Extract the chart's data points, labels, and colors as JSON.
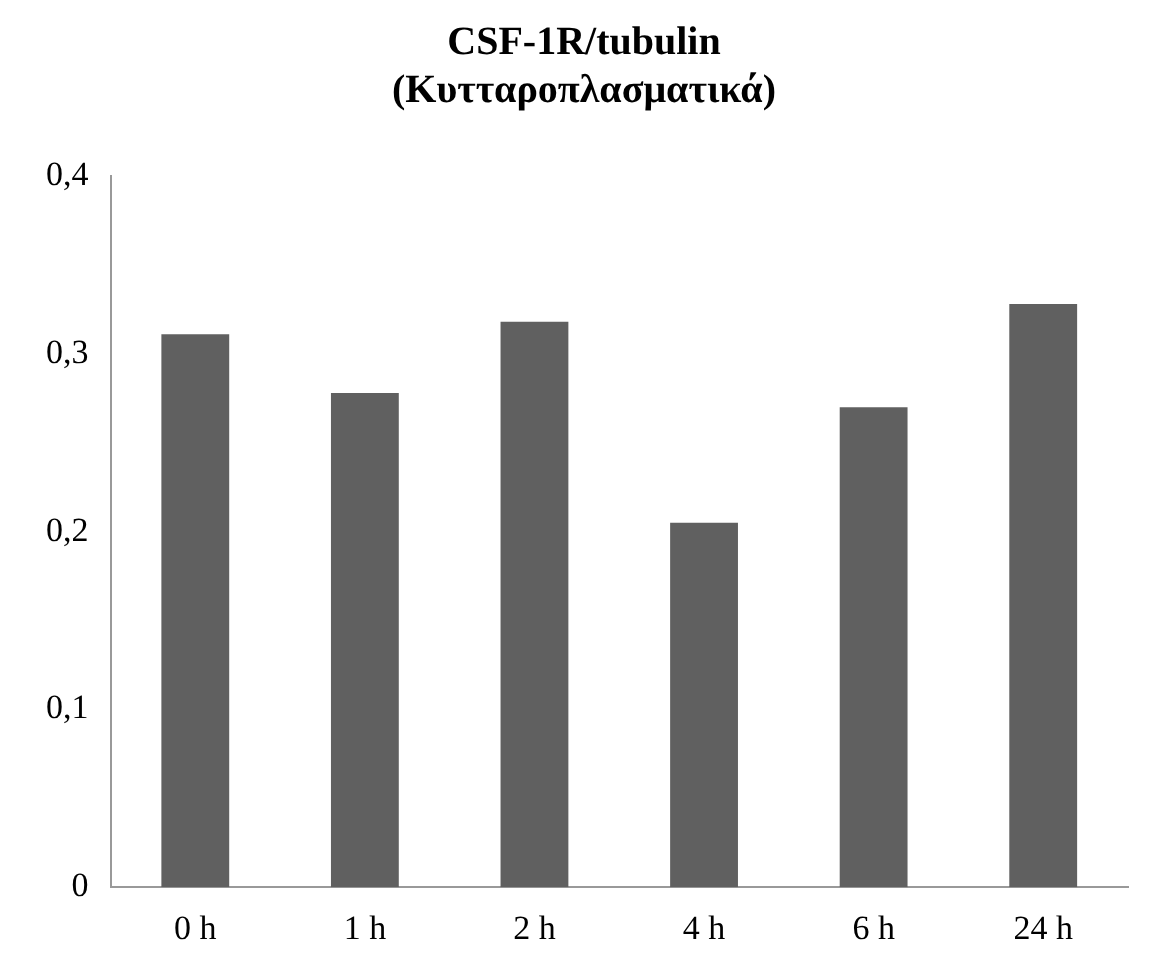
{
  "chart_data": {
    "type": "bar",
    "title": [
      "CSF-1R/tubulin",
      "(Κυτταροπλασματικά)"
    ],
    "categories": [
      "0 h",
      "1 h",
      "2 h",
      "4 h",
      "6 h",
      "24 h"
    ],
    "values": [
      0.311,
      0.278,
      0.318,
      0.205,
      0.27,
      0.328
    ],
    "color": "#606060",
    "ylim": [
      0,
      0.4
    ],
    "yticks": [
      {
        "value": 0,
        "label": "0"
      },
      {
        "value": 0.1,
        "label": "0,1"
      },
      {
        "value": 0.2,
        "label": "0,2"
      },
      {
        "value": 0.3,
        "label": "0,3"
      },
      {
        "value": 0.4,
        "label": "0,4"
      }
    ],
    "grid": false,
    "legend": false
  }
}
